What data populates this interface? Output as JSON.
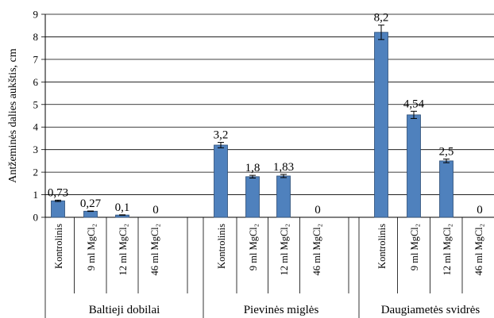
{
  "chart_data": {
    "type": "bar",
    "ylabel": "Antžeminės dalies aukštis, cm",
    "ylim": [
      0,
      9
    ],
    "yticks": [
      0,
      1,
      2,
      3,
      4,
      5,
      6,
      7,
      8,
      9
    ],
    "grid": true,
    "bar_color": "#4f81bd",
    "groups": [
      {
        "name": "Baltieji dobilai",
        "categories": [
          "Kontrolinis",
          "9 ml MgCl₂",
          "12 ml MgCl₂",
          "46 ml MgCl₂"
        ],
        "values": [
          0.73,
          0.27,
          0.1,
          0
        ],
        "labels": [
          "0,73",
          "0,27",
          "0,1",
          "0"
        ],
        "errors": [
          0.03,
          0.01,
          0.01,
          0
        ]
      },
      {
        "name": "Pievinės miglės",
        "categories": [
          "Kontrolinis",
          "9 ml MgCl₂",
          "12 ml MgCl₂",
          "46 ml MgCl₂"
        ],
        "values": [
          3.2,
          1.8,
          1.83,
          0
        ],
        "labels": [
          "3,2",
          "1,8",
          "1,83",
          "0"
        ],
        "errors": [
          0.12,
          0.06,
          0.07,
          0
        ]
      },
      {
        "name": "Daugiametės svidrės",
        "categories": [
          "Kontrolinis",
          "9 ml MgCl₂",
          "12 ml MgCl₂",
          "46 ml MgCl₂"
        ],
        "values": [
          8.2,
          4.54,
          2.5,
          0
        ],
        "labels": [
          "8,2",
          "4,54",
          "2,5",
          "0"
        ],
        "errors": [
          0.32,
          0.16,
          0.08,
          0
        ]
      }
    ]
  }
}
